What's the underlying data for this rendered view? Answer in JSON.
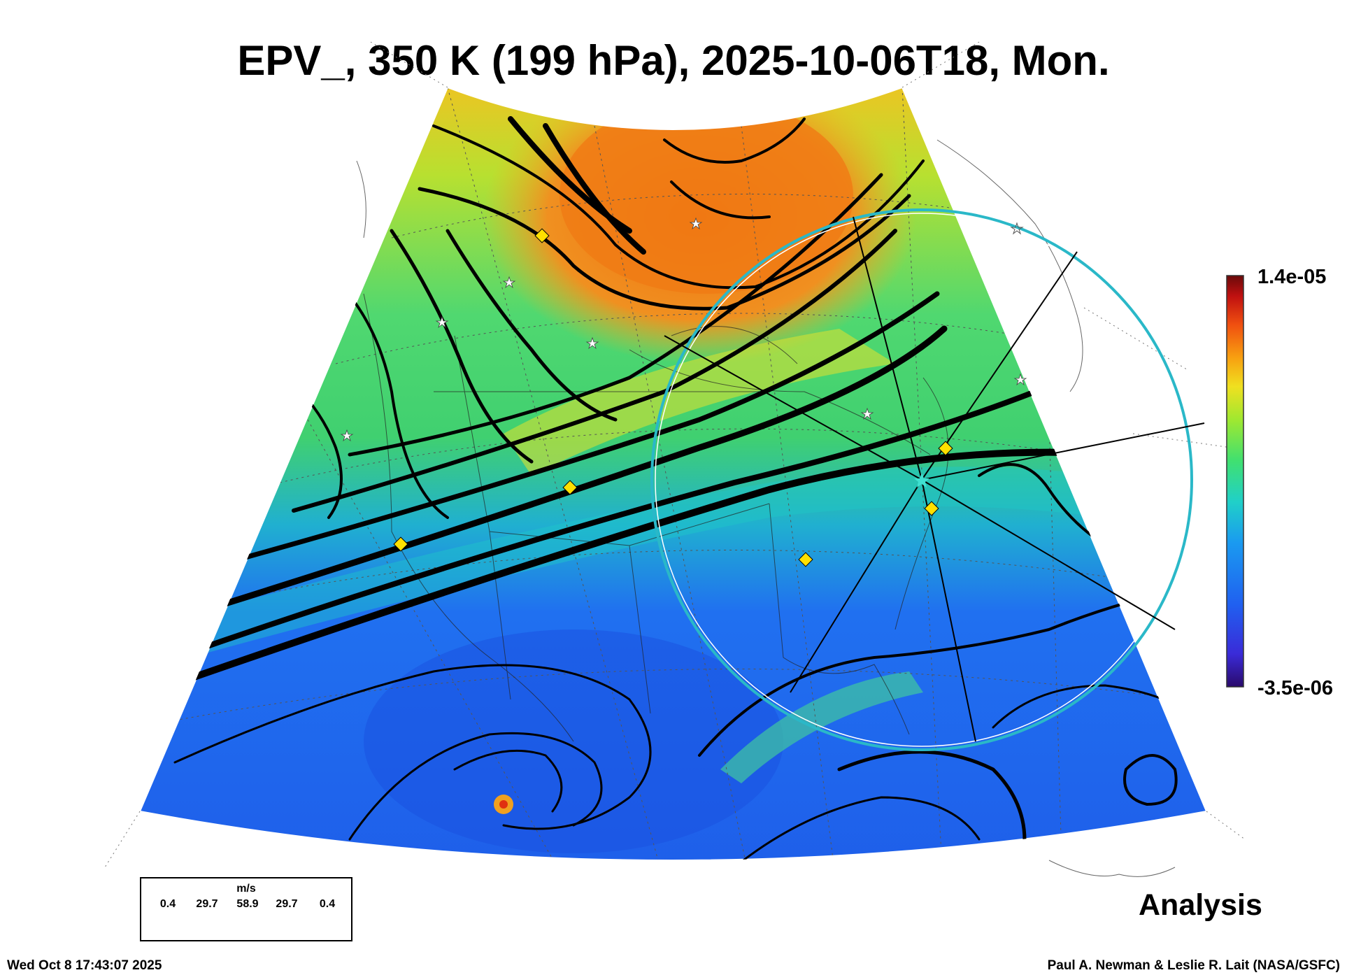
{
  "title": "EPV_, 350 K (199 hPa), 2025-10-06T18, Mon.",
  "colorbar": {
    "max_label": "1.4e-05",
    "min_label": "-3.5e-06",
    "colors": [
      "#2a0a6b",
      "#3a2bd8",
      "#2060f0",
      "#1a9af0",
      "#20d0c8",
      "#40e070",
      "#a0e830",
      "#f0e020",
      "#f8a010",
      "#f05010",
      "#c01010",
      "#6a0a0a"
    ]
  },
  "annotation": "Analysis",
  "footer": {
    "timestamp": "Wed Oct  8 17:43:07 2025",
    "credit": "Paul A. Newman & Leslie R. Lait (NASA/GSFC)"
  },
  "wind_legend": {
    "unit": "m/s",
    "values": [
      "0.4",
      "29.7",
      "58.9",
      "29.7",
      "0.4"
    ]
  },
  "map_colors": {
    "arctic": "#f08a1a",
    "polar": "#e8b020",
    "midlat": "#40d870",
    "jet": "#20c8c0",
    "subtropic": "#2070f0",
    "tropic": "#1f58e8",
    "circle": "#2ab8c8",
    "marker": "#ffe000"
  }
}
